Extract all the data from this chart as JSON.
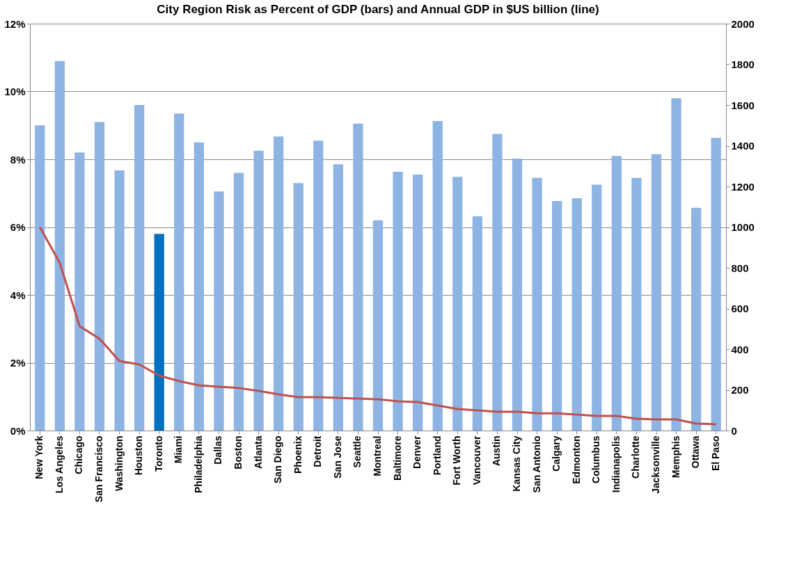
{
  "chart_data": {
    "type": "bar",
    "title": "City Region Risk as Percent of GDP (bars) and Annual GDP in $US billion (line)",
    "categories": [
      "New York",
      "Los Angeles",
      "Chicago",
      "San Francisco",
      "Washington",
      "Houston",
      "Toronto",
      "Miami",
      "Philadelphia",
      "Dallas",
      "Boston",
      "Atlanta",
      "San Diego",
      "Phoenix",
      "Detroit",
      "San Jose",
      "Seattle",
      "Montreal",
      "Baltimore",
      "Denver",
      "Portland",
      "Fort Worth",
      "Vancouver",
      "Austin",
      "Kansas City",
      "San Antonio",
      "Calgary",
      "Edmonton",
      "Columbus",
      "Indianapolis",
      "Charlotte",
      "Jacksonville",
      "Memphis",
      "Ottawa",
      "El Paso"
    ],
    "series": [
      {
        "values": [
          9.0,
          10.9,
          8.2,
          9.1,
          7.67,
          9.6,
          5.8,
          9.35,
          8.5,
          7.05,
          7.6,
          8.25,
          8.67,
          7.3,
          8.55,
          7.85,
          9.05,
          6.2,
          7.63,
          7.55,
          9.13,
          7.48,
          6.32,
          8.75,
          8.02,
          7.45,
          6.77,
          6.85,
          7.25,
          8.1,
          7.45,
          8.15,
          9.8,
          6.57,
          8.63
        ],
        "colors": [
          "#8db4e2",
          "#8db4e2",
          "#8db4e2",
          "#8db4e2",
          "#8db4e2",
          "#8db4e2",
          "#0070c0",
          "#8db4e2",
          "#8db4e2",
          "#8db4e2",
          "#8db4e2",
          "#8db4e2",
          "#8db4e2",
          "#8db4e2",
          "#8db4e2",
          "#8db4e2",
          "#8db4e2",
          "#8db4e2",
          "#8db4e2",
          "#8db4e2",
          "#8db4e2",
          "#8db4e2",
          "#8db4e2",
          "#8db4e2",
          "#8db4e2",
          "#8db4e2",
          "#8db4e2",
          "#8db4e2",
          "#8db4e2",
          "#8db4e2",
          "#8db4e2",
          "#8db4e2",
          "#8db4e2",
          "#8db4e2",
          "#8db4e2"
        ]
      },
      {
        "type": "line",
        "axis": "y2",
        "color": "#c0504d",
        "values": [
          1000,
          824,
          513,
          451,
          342,
          325,
          270,
          243,
          222,
          215,
          209,
          195,
          178,
          164,
          164,
          161,
          157,
          154,
          144,
          140,
          123,
          106,
          99,
          92,
          92,
          85,
          85,
          79,
          72,
          72,
          58,
          55,
          55,
          34,
          31
        ]
      }
    ],
    "ylim": [
      0,
      12
    ],
    "yticks": [
      {
        "value": 0,
        "label": "0%"
      },
      {
        "value": 2,
        "label": "2%"
      },
      {
        "value": 4,
        "label": "4%"
      },
      {
        "value": 6,
        "label": "6%"
      },
      {
        "value": 8,
        "label": "8%"
      },
      {
        "value": 10,
        "label": "10%"
      },
      {
        "value": 12,
        "label": "12%"
      }
    ],
    "y2lim": [
      0,
      2000
    ],
    "y2ticks": [
      0,
      200,
      400,
      600,
      800,
      1000,
      1200,
      1400,
      1600,
      1800,
      2000
    ],
    "grid": "y",
    "marker": "none",
    "line_style": "solid"
  }
}
